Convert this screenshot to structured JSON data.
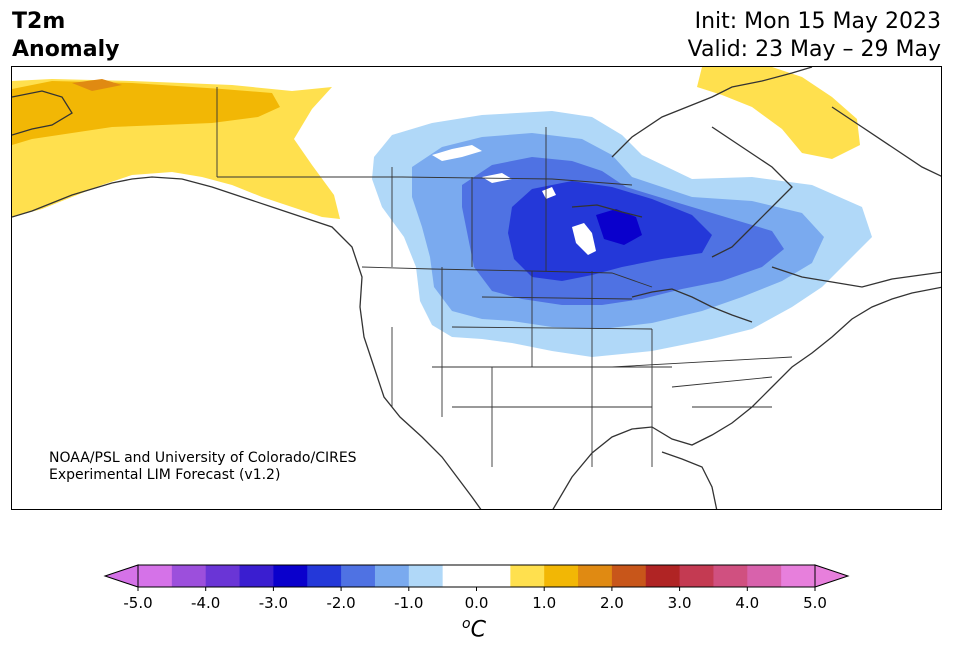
{
  "title": {
    "variable": "T2m",
    "subtitle": "Anomaly",
    "init": "Init: Mon 15 May 2023",
    "valid": "Valid: 23 May – 29 May"
  },
  "credit": {
    "line1": "NOAA/PSL and University of Colorado/CIRES",
    "line2": "Experimental LIM Forecast (v1.2)"
  },
  "colorbar": {
    "units_symbol": "C",
    "units_superscript": "o",
    "tick_labels": [
      "-5.0",
      "-4.0",
      "-3.0",
      "-2.0",
      "-1.0",
      "0.0",
      "1.0",
      "2.0",
      "3.0",
      "4.0",
      "5.0"
    ],
    "colors": [
      "#d572e8",
      "#9c4fdc",
      "#6a35d6",
      "#3a1ed0",
      "#0a00cc",
      "#2438d9",
      "#4f72e3",
      "#7aaaef",
      "#b0d8f8",
      "#ffffff",
      "#ffffff",
      "#ffe04e",
      "#f2b705",
      "#e08a12",
      "#c8561a",
      "#b02424",
      "#c43a52",
      "#d05080",
      "#d862ac",
      "#e77fdc"
    ]
  },
  "colors": {
    "land_outline": "#333333",
    "cold_1": "#b0d8f8",
    "cold_2": "#7aaaef",
    "cold_3": "#4f72e3",
    "cold_4": "#2438d9",
    "cold_5": "#0a00cc",
    "warm_1": "#ffe04e",
    "warm_2": "#f2b705",
    "warm_3": "#e08a12"
  }
}
